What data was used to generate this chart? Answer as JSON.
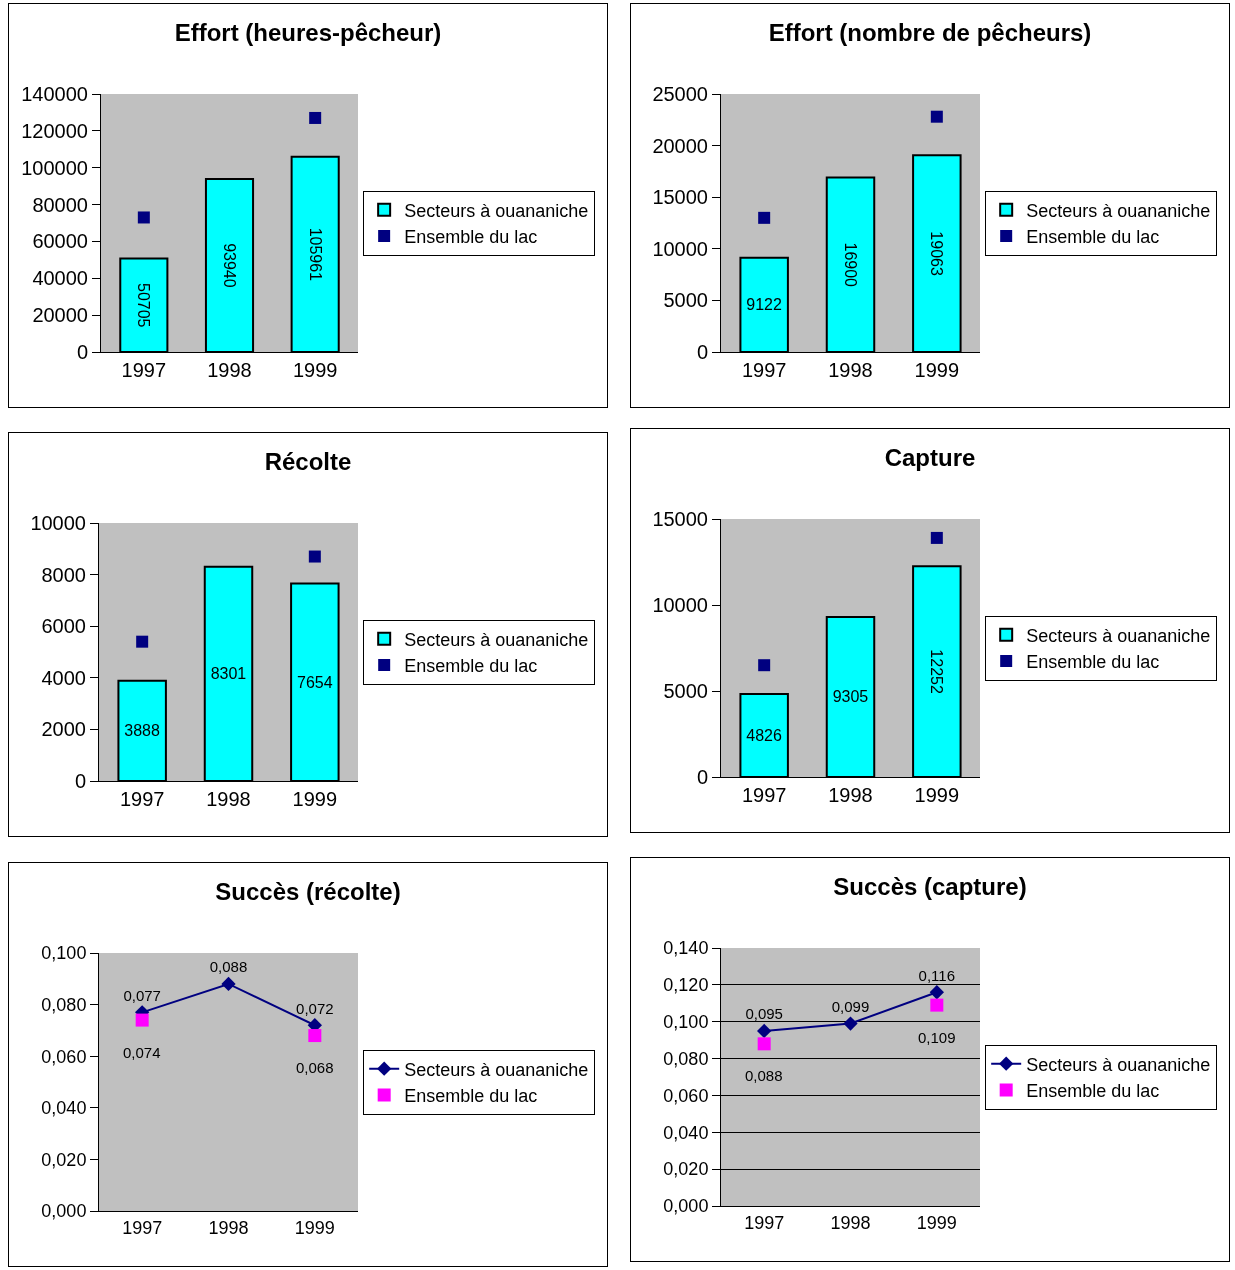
{
  "chart_data": [
    {
      "type": "bar",
      "title": "Effort (heures-pêcheur)",
      "categories": [
        "1997",
        "1998",
        "1999"
      ],
      "ylim": [
        0,
        140000
      ],
      "yticks": [
        0,
        20000,
        40000,
        60000,
        80000,
        100000,
        120000,
        140000
      ],
      "grid": false,
      "legend": "right",
      "series": [
        {
          "name": "Secteurs à ouananiche",
          "color": "#00ffff",
          "values": [
            50705,
            93940,
            105961
          ],
          "value_labels": [
            "50705",
            "93940",
            "105961"
          ]
        },
        {
          "name": "Ensemble du lac",
          "type": "scatter",
          "color": "#000080",
          "values": [
            73000,
            null,
            127000
          ]
        }
      ]
    },
    {
      "type": "bar",
      "title": "Effort (nombre de pêcheurs)",
      "categories": [
        "1997",
        "1998",
        "1999"
      ],
      "ylim": [
        0,
        25000
      ],
      "yticks": [
        0,
        5000,
        10000,
        15000,
        20000,
        25000
      ],
      "grid": false,
      "legend": "right",
      "series": [
        {
          "name": "Secteurs à ouananiche",
          "color": "#00ffff",
          "values": [
            9122,
            16900,
            19063
          ],
          "value_labels": [
            "9122",
            "16900",
            "19063"
          ]
        },
        {
          "name": "Ensemble du lac",
          "type": "scatter",
          "color": "#000080",
          "values": [
            13000,
            null,
            22800
          ]
        }
      ]
    },
    {
      "type": "bar",
      "title": "Récolte",
      "categories": [
        "1997",
        "1998",
        "1999"
      ],
      "ylim": [
        0,
        10000
      ],
      "yticks": [
        0,
        2000,
        4000,
        6000,
        8000,
        10000
      ],
      "grid": false,
      "legend": "right",
      "series": [
        {
          "name": "Secteurs à ouananiche",
          "color": "#00ffff",
          "values": [
            3888,
            8301,
            7654
          ],
          "value_labels": [
            "3888",
            "8301",
            "7654"
          ]
        },
        {
          "name": "Ensemble du lac",
          "type": "scatter",
          "color": "#000080",
          "values": [
            5400,
            null,
            8700
          ]
        }
      ]
    },
    {
      "type": "bar",
      "title": "Capture",
      "categories": [
        "1997",
        "1998",
        "1999"
      ],
      "ylim": [
        0,
        15000
      ],
      "yticks": [
        0,
        5000,
        10000,
        15000
      ],
      "grid": false,
      "legend": "right",
      "series": [
        {
          "name": "Secteurs à ouananiche",
          "color": "#00ffff",
          "values": [
            4826,
            9305,
            12252
          ],
          "value_labels": [
            "4826",
            "9305",
            "12252"
          ]
        },
        {
          "name": "Ensemble du lac",
          "type": "scatter",
          "color": "#000080",
          "values": [
            6500,
            null,
            13900
          ]
        }
      ]
    },
    {
      "type": "line",
      "title": "Succès (récolte)",
      "categories": [
        "1997",
        "1998",
        "1999"
      ],
      "ylim": [
        0,
        0.1
      ],
      "yticks": [
        {
          "value": 0,
          "label": "0,000"
        },
        {
          "value": 0.02,
          "label": "0,020"
        },
        {
          "value": 0.04,
          "label": "0,040"
        },
        {
          "value": 0.06,
          "label": "0,060"
        },
        {
          "value": 0.08,
          "label": "0,080"
        },
        {
          "value": 0.1,
          "label": "0,100"
        }
      ],
      "grid": false,
      "legend": "right",
      "series": [
        {
          "name": "Secteurs à ouananiche",
          "color": "#000080",
          "marker": "diamond",
          "values": [
            0.077,
            0.088,
            0.072
          ],
          "value_labels": [
            "0,077",
            "0,088",
            "0,072"
          ]
        },
        {
          "name": "Ensemble du lac",
          "type": "scatter",
          "color": "#ff00ff",
          "marker": "square",
          "values": [
            0.074,
            null,
            0.068
          ],
          "value_labels": [
            "0,074",
            null,
            "0,068"
          ]
        }
      ]
    },
    {
      "type": "line",
      "title": "Succès (capture)",
      "categories": [
        "1997",
        "1998",
        "1999"
      ],
      "ylim": [
        0,
        0.14
      ],
      "yticks": [
        {
          "value": 0,
          "label": "0,000"
        },
        {
          "value": 0.02,
          "label": "0,020"
        },
        {
          "value": 0.04,
          "label": "0,040"
        },
        {
          "value": 0.06,
          "label": "0,060"
        },
        {
          "value": 0.08,
          "label": "0,080"
        },
        {
          "value": 0.1,
          "label": "0,100"
        },
        {
          "value": 0.12,
          "label": "0,120"
        },
        {
          "value": 0.14,
          "label": "0,140"
        }
      ],
      "grid": "y",
      "legend": "right",
      "series": [
        {
          "name": "Secteurs à ouananiche",
          "color": "#000080",
          "marker": "diamond",
          "values": [
            0.095,
            0.099,
            0.116
          ],
          "value_labels": [
            "0,095",
            "0,099",
            "0,116"
          ]
        },
        {
          "name": "Ensemble du lac",
          "type": "scatter",
          "color": "#ff00ff",
          "marker": "square",
          "values": [
            0.088,
            null,
            0.109
          ],
          "value_labels": [
            "0,088",
            null,
            "0,109"
          ]
        }
      ]
    }
  ]
}
